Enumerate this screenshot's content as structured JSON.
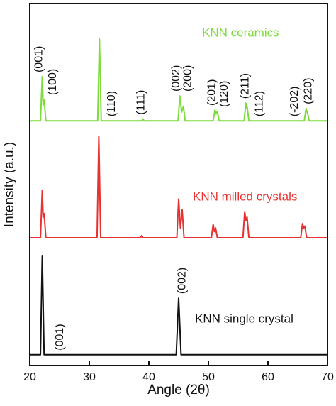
{
  "chart_data": {
    "type": "line",
    "xlabel": "Angle (2θ)",
    "ylabel": "Intensity (a.u.)",
    "xlim": [
      20,
      70
    ],
    "xticks": [
      20,
      30,
      40,
      50,
      60,
      70
    ],
    "ylim": [
      0,
      100
    ],
    "series": [
      {
        "name": "KNN ceramics",
        "color": "#7ddc3c",
        "x": [
          20,
          21.8,
          22.1,
          22.25,
          22.4,
          22.7,
          31.4,
          31.7,
          32.0,
          38.8,
          39.0,
          39.2,
          44.9,
          45.2,
          45.5,
          45.8,
          46.1,
          50.8,
          51.1,
          51.3,
          51.5,
          51.8,
          56.0,
          56.3,
          56.4,
          56.5,
          56.8,
          66.1,
          66.4,
          66.5,
          66.6,
          66.9,
          70
        ],
        "values": [
          67.6,
          67.6,
          79.8,
          72,
          73.5,
          67.6,
          67.6,
          90.2,
          67.6,
          67.6,
          68.1,
          67.6,
          67.6,
          74.5,
          70,
          71.6,
          67.6,
          67.6,
          70.6,
          69.5,
          70.2,
          67.6,
          67.6,
          72.5,
          71,
          71.5,
          67.6,
          67.6,
          71,
          70,
          70.3,
          67.6,
          67.6
        ],
        "peaks": [
          {
            "label": "(001)",
            "x": 21.6
          },
          {
            "label": "(100)",
            "x": 23.9
          },
          {
            "label": "(110)",
            "x": 33.8
          },
          {
            "label": "(111)",
            "x": 38.7
          },
          {
            "label": "(002)",
            "x": 44.6
          },
          {
            "label": "(200)",
            "x": 46.6
          },
          {
            "label": "(201)",
            "x": 50.6
          },
          {
            "label": "(120)",
            "x": 52.7
          },
          {
            "label": "(211)",
            "x": 56.2
          },
          {
            "label": "(112)",
            "x": 58.6
          },
          {
            "label": "(-202)",
            "x": 64.5
          },
          {
            "label": "(220)",
            "x": 66.8
          }
        ]
      },
      {
        "name": "KNN milled crystals",
        "color": "#e83232",
        "x": [
          20,
          21.8,
          22.1,
          22.25,
          22.4,
          22.7,
          31.3,
          31.6,
          31.9,
          38.6,
          38.8,
          39.0,
          44.7,
          45.0,
          45.3,
          45.6,
          45.9,
          50.5,
          50.8,
          51.0,
          51.2,
          51.5,
          55.8,
          56.1,
          56.3,
          56.5,
          56.8,
          65.5,
          65.8,
          66.0,
          66.2,
          66.5,
          70
        ],
        "values": [
          35.3,
          35.3,
          48.4,
          41,
          42,
          35.3,
          35.3,
          63.3,
          35.3,
          35.3,
          35.9,
          35.3,
          35.3,
          46,
          38,
          43,
          35.3,
          35.3,
          39,
          37,
          38,
          35.3,
          35.3,
          42.5,
          40,
          41,
          35.3,
          35.3,
          39.2,
          38,
          38.5,
          35.3,
          35.3
        ]
      },
      {
        "name": "KNN single crystal",
        "color": "#111111",
        "x": [
          20,
          21.8,
          22.1,
          22.4,
          44.6,
          45.0,
          45.4,
          70
        ],
        "values": [
          3,
          3,
          30.4,
          3,
          3,
          18.6,
          3,
          3
        ],
        "peaks": [
          {
            "label": "(001)",
            "x": 25.1
          },
          {
            "label": "(002)",
            "x": 45.6
          }
        ]
      }
    ]
  }
}
